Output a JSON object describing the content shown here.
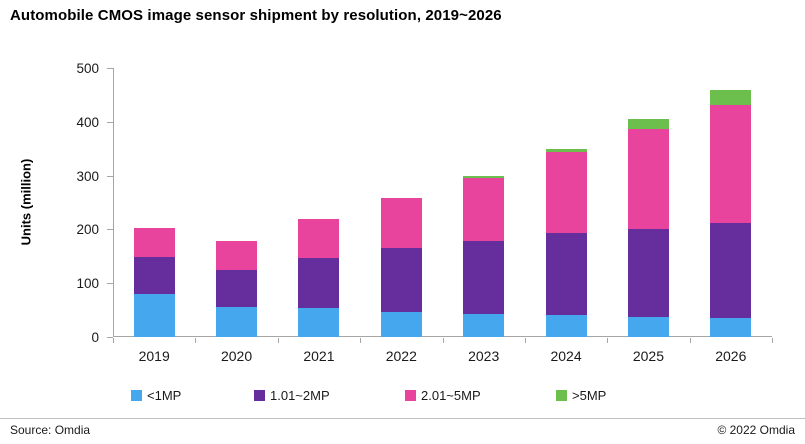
{
  "title": "Automobile CMOS image sensor shipment by resolution, 2019~2026",
  "chart_data": {
    "type": "bar",
    "stacked": true,
    "title": "Automobile CMOS image sensor shipment by resolution, 2019~2026",
    "categories": [
      "2019",
      "2020",
      "2021",
      "2022",
      "2023",
      "2024",
      "2025",
      "2026"
    ],
    "series": [
      {
        "name": "<1MP",
        "color": "#45a7ee",
        "values": [
          80,
          55,
          53,
          47,
          42,
          40,
          37,
          35
        ]
      },
      {
        "name": "1.01~2MP",
        "color": "#662d9c",
        "values": [
          68,
          70,
          93,
          118,
          137,
          154,
          163,
          177
        ]
      },
      {
        "name": "2.01~5MP",
        "color": "#e9449d",
        "values": [
          55,
          54,
          73,
          93,
          117,
          150,
          186,
          220
        ]
      },
      {
        "name": ">5MP",
        "color": "#6cbf4c",
        "values": [
          0,
          0,
          0,
          0,
          4,
          5,
          20,
          28
        ]
      }
    ],
    "totals": [
      203,
      179,
      219,
      258,
      300,
      349,
      406,
      460
    ],
    "xlabel": "",
    "ylabel": "Units (million)",
    "ylim": [
      0,
      500
    ],
    "yticks": [
      0,
      100,
      200,
      300,
      400,
      500
    ],
    "grid": false,
    "legend_position": "bottom"
  },
  "colors": {
    "axis": "#a6a6a6",
    "tick_text": "#1a1a1a",
    "title_text": "#000000"
  },
  "footer": {
    "source": "Source: Omdia",
    "copyright": "© 2022 Omdia"
  }
}
